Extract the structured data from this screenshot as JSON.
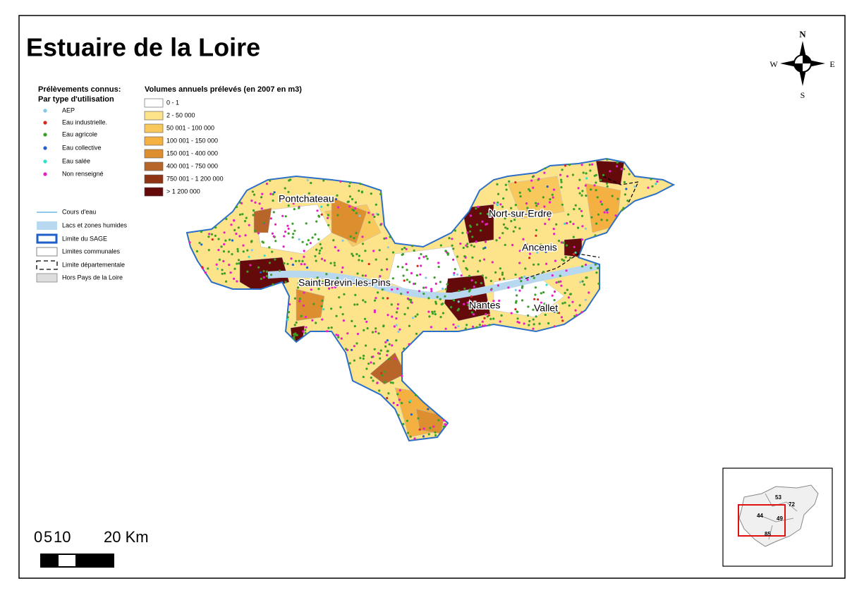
{
  "title": "Estuaire de la Loire",
  "compass": {
    "n": "N",
    "s": "S",
    "e": "E",
    "w": "W"
  },
  "legend_points": {
    "title_lines": [
      "Prélèvements connus:",
      "Par type d'utilisation"
    ],
    "items": [
      {
        "label": "AEP",
        "color": "#7ec8e8"
      },
      {
        "label": "Eau industrielle.",
        "color": "#d42a1e"
      },
      {
        "label": "Eau agricole",
        "color": "#3aa027"
      },
      {
        "label": "Eau collective",
        "color": "#1f5fc8"
      },
      {
        "label": "Eau salée",
        "color": "#2ee0c8"
      },
      {
        "label": "Non renseigné",
        "color": "#e61ec8"
      }
    ]
  },
  "legend_volumes": {
    "title": "Volumes annuels prélevés (en 2007 en m3)",
    "items": [
      {
        "label": "0 - 1",
        "color": "#ffffff"
      },
      {
        "label": "2 - 50 000",
        "color": "#fde38a"
      },
      {
        "label": "50 001 - 100 000",
        "color": "#f9c85c"
      },
      {
        "label": "100 001 - 150 000",
        "color": "#f4b040"
      },
      {
        "label": "150 001 - 400 000",
        "color": "#dd8e2e"
      },
      {
        "label": "400 001 - 750 000",
        "color": "#b8652a"
      },
      {
        "label": "750 001 - 1 200 000",
        "color": "#8f3516"
      },
      {
        "label": "> 1 200 000",
        "color": "#640a0a"
      }
    ]
  },
  "legend_layers": {
    "items": [
      "Cours d'eau",
      "Lacs et zones humides",
      "Limite du SAGE",
      "Limites communales",
      "Limite départementale",
      "Hors Pays de la Loire"
    ]
  },
  "places": [
    "Pontchateau",
    "Nort-sur-Erdre",
    "Ancenis",
    "Saint-Brevin-les-Pins",
    "Nantes",
    "Vallet"
  ],
  "scale_bar": {
    "labels": [
      "0",
      "5",
      "10",
      "20 Km"
    ]
  },
  "inset": {
    "labels": [
      "53",
      "72",
      "44",
      "49",
      "85"
    ]
  }
}
